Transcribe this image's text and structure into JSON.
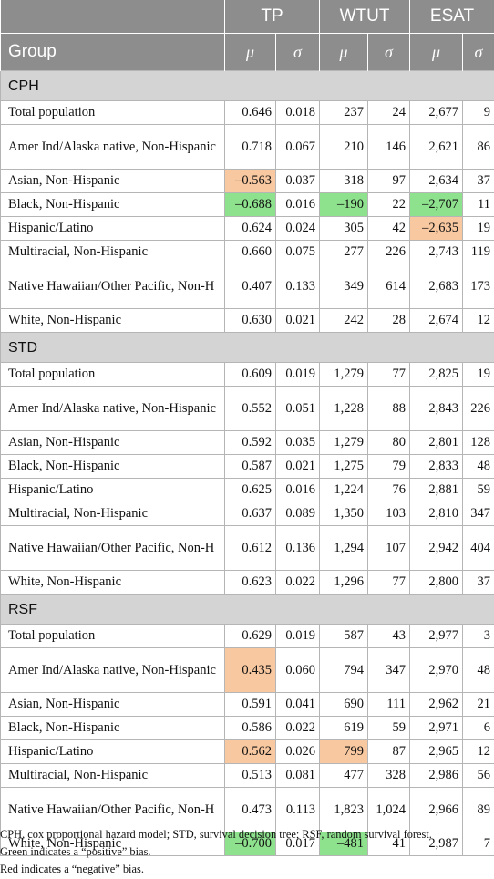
{
  "header": {
    "metric_groups": [
      "TP",
      "WTUT",
      "ESAT"
    ],
    "group_label": "Group",
    "mu": "μ",
    "sigma": "σ"
  },
  "colors": {
    "header_bg": "#8d8d8d",
    "section_bg": "#d4d4d4",
    "green_highlight": "#8ee28e",
    "red_highlight": "#f8c8a0"
  },
  "sections": [
    {
      "name": "CPH",
      "rows": [
        {
          "group": "Total population",
          "values": [
            "0.646",
            "0.018",
            "237",
            "24",
            "2,677",
            "9"
          ],
          "hl": [
            "",
            "",
            "",
            "",
            "",
            ""
          ]
        },
        {
          "group": "Amer Ind/Alaska native, Non-Hispanic",
          "values": [
            "0.718",
            "0.067",
            "210",
            "146",
            "2,621",
            "86"
          ],
          "hl": [
            "",
            "",
            "",
            "",
            "",
            ""
          ]
        },
        {
          "group": "Asian, Non-Hispanic",
          "values": [
            "–0.563",
            "0.037",
            "318",
            "97",
            "2,634",
            "37"
          ],
          "hl": [
            "red",
            "",
            "",
            "",
            "",
            ""
          ]
        },
        {
          "group": "Black, Non-Hispanic",
          "values": [
            "–0.688",
            "0.016",
            "–190",
            "22",
            "–2,707",
            "11"
          ],
          "hl": [
            "green",
            "",
            "green",
            "",
            "green",
            ""
          ]
        },
        {
          "group": "Hispanic/Latino",
          "values": [
            "0.624",
            "0.024",
            "305",
            "42",
            "–2,635",
            "19"
          ],
          "hl": [
            "",
            "",
            "",
            "",
            "red",
            ""
          ]
        },
        {
          "group": "Multiracial, Non-Hispanic",
          "values": [
            "0.660",
            "0.075",
            "277",
            "226",
            "2,743",
            "119"
          ],
          "hl": [
            "",
            "",
            "",
            "",
            "",
            ""
          ]
        },
        {
          "group": "Native Hawaiian/Other Pacific, Non-H",
          "values": [
            "0.407",
            "0.133",
            "349",
            "614",
            "2,683",
            "173"
          ],
          "hl": [
            "",
            "",
            "",
            "",
            "",
            ""
          ]
        },
        {
          "group": "White, Non-Hispanic",
          "values": [
            "0.630",
            "0.021",
            "242",
            "28",
            "2,674",
            "12"
          ],
          "hl": [
            "",
            "",
            "",
            "",
            "",
            ""
          ]
        }
      ]
    },
    {
      "name": "STD",
      "rows": [
        {
          "group": "Total population",
          "values": [
            "0.609",
            "0.019",
            "1,279",
            "77",
            "2,825",
            "19"
          ],
          "hl": [
            "",
            "",
            "",
            "",
            "",
            ""
          ]
        },
        {
          "group": "Amer Ind/Alaska native, Non-Hispanic",
          "values": [
            "0.552",
            "0.051",
            "1,228",
            "88",
            "2,843",
            "226"
          ],
          "hl": [
            "",
            "",
            "",
            "",
            "",
            ""
          ]
        },
        {
          "group": "Asian, Non-Hispanic",
          "values": [
            "0.592",
            "0.035",
            "1,279",
            "80",
            "2,801",
            "128"
          ],
          "hl": [
            "",
            "",
            "",
            "",
            "",
            ""
          ]
        },
        {
          "group": "Black, Non-Hispanic",
          "values": [
            "0.587",
            "0.021",
            "1,275",
            "79",
            "2,833",
            "48"
          ],
          "hl": [
            "",
            "",
            "",
            "",
            "",
            ""
          ]
        },
        {
          "group": "Hispanic/Latino",
          "values": [
            "0.625",
            "0.016",
            "1,224",
            "76",
            "2,881",
            "59"
          ],
          "hl": [
            "",
            "",
            "",
            "",
            "",
            ""
          ]
        },
        {
          "group": "Multiracial, Non-Hispanic",
          "values": [
            "0.637",
            "0.089",
            "1,350",
            "103",
            "2,810",
            "347"
          ],
          "hl": [
            "",
            "",
            "",
            "",
            "",
            ""
          ]
        },
        {
          "group": "Native Hawaiian/Other Pacific, Non-H",
          "values": [
            "0.612",
            "0.136",
            "1,294",
            "107",
            "2,942",
            "404"
          ],
          "hl": [
            "",
            "",
            "",
            "",
            "",
            ""
          ]
        },
        {
          "group": "White, Non-Hispanic",
          "values": [
            "0.623",
            "0.022",
            "1,296",
            "77",
            "2,800",
            "37"
          ],
          "hl": [
            "",
            "",
            "",
            "",
            "",
            ""
          ]
        }
      ]
    },
    {
      "name": "RSF",
      "rows": [
        {
          "group": "Total population",
          "values": [
            "0.629",
            "0.019",
            "587",
            "43",
            "2,977",
            "3"
          ],
          "hl": [
            "",
            "",
            "",
            "",
            "",
            ""
          ]
        },
        {
          "group": "Amer Ind/Alaska native, Non-Hispanic",
          "values": [
            "0.435",
            "0.060",
            "794",
            "347",
            "2,970",
            "48"
          ],
          "hl": [
            "red",
            "",
            "",
            "",
            "",
            ""
          ]
        },
        {
          "group": "Asian, Non-Hispanic",
          "values": [
            "0.591",
            "0.041",
            "690",
            "111",
            "2,962",
            "21"
          ],
          "hl": [
            "",
            "",
            "",
            "",
            "",
            ""
          ]
        },
        {
          "group": "Black, Non-Hispanic",
          "values": [
            "0.586",
            "0.022",
            "619",
            "59",
            "2,971",
            "6"
          ],
          "hl": [
            "",
            "",
            "",
            "",
            "",
            ""
          ]
        },
        {
          "group": "Hispanic/Latino",
          "values": [
            "0.562",
            "0.026",
            "799",
            "87",
            "2,965",
            "12"
          ],
          "hl": [
            "red",
            "",
            "red",
            "",
            "",
            ""
          ]
        },
        {
          "group": "Multiracial, Non-Hispanic",
          "values": [
            "0.513",
            "0.081",
            "477",
            "328",
            "2,986",
            "56"
          ],
          "hl": [
            "",
            "",
            "",
            "",
            "",
            ""
          ]
        },
        {
          "group": "Native Hawaiian/Other Pacific, Non-H",
          "values": [
            "0.473",
            "0.113",
            "1,823",
            "1,024",
            "2,966",
            "89"
          ],
          "hl": [
            "",
            "",
            "",
            "",
            "",
            ""
          ]
        },
        {
          "group": "White, Non-Hispanic",
          "values": [
            "–0.700",
            "0.017",
            "–481",
            "41",
            "2,987",
            "7"
          ],
          "hl": [
            "green",
            "",
            "green",
            "",
            "",
            ""
          ]
        }
      ]
    }
  ],
  "footnotes": [
    "CPH, cox proportional hazard model; STD, survival decision tree; RSF, random survival forest.",
    "Green indicates a “positive” bias.",
    "Red indicates a “negative” bias."
  ]
}
